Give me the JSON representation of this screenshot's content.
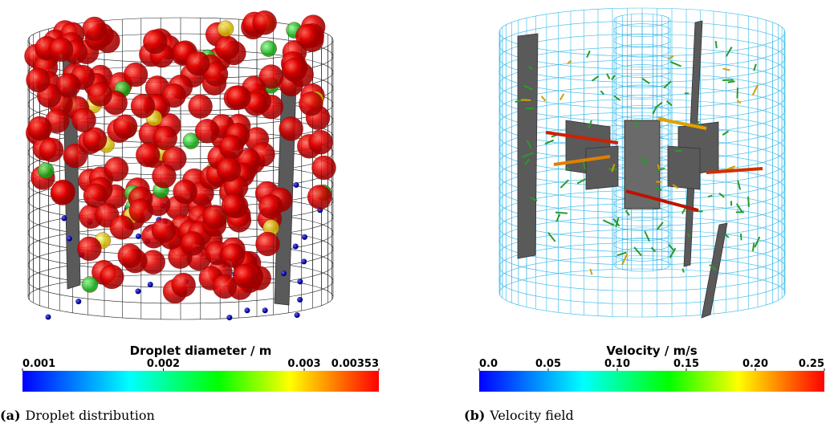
{
  "panels": [
    {
      "label": "(a)",
      "caption": "Droplet distribution",
      "colorbar": {
        "title": "Droplet diameter / m",
        "lim": [
          0.001,
          0.00353
        ],
        "ticks": [
          0.001,
          0.002,
          0.003,
          0.00353
        ]
      }
    },
    {
      "label": "(b)",
      "caption": "Velocity field",
      "colorbar": {
        "title": "Velocity / m/s",
        "lim": [
          0,
          0.25
        ],
        "ticks": [
          {
            "value": 0,
            "label": "0.0"
          },
          0.05,
          {
            "value": 0.1,
            "label": "0.10"
          },
          0.15,
          {
            "value": 0.2,
            "label": "0.20"
          },
          0.25
        ]
      }
    }
  ]
}
